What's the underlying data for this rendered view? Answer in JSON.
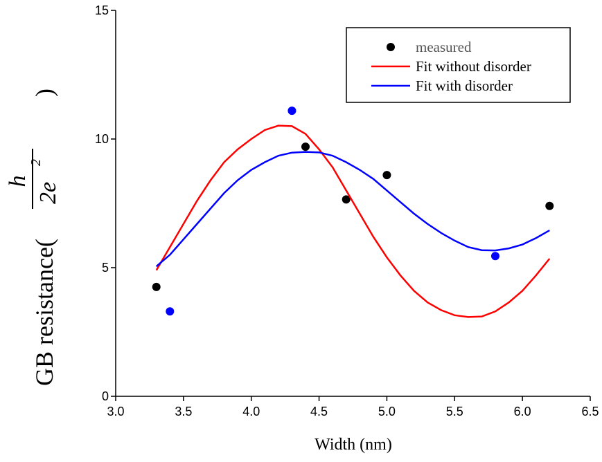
{
  "chart_data": {
    "type": "line",
    "x_label": "Width (nm)",
    "y_label": {
      "text": "GB resistance(",
      "numerator": "h",
      "denominator": "2e",
      "superscript": "2",
      "close": ")"
    },
    "xlim": [
      3.0,
      6.5
    ],
    "xticks": [
      {
        "value": 3.0,
        "label": "3.0"
      },
      {
        "value": 3.5,
        "label": "3.5"
      },
      {
        "value": 4.0,
        "label": "4.0"
      },
      {
        "value": 4.5,
        "label": "4.5"
      },
      {
        "value": 5.0,
        "label": "5.0"
      },
      {
        "value": 5.5,
        "label": "5.5"
      },
      {
        "value": 6.0,
        "label": "6.0"
      },
      {
        "value": 6.5,
        "label": "6.5"
      }
    ],
    "ylim": [
      0,
      15
    ],
    "yticks": [
      0,
      5,
      10,
      15
    ],
    "legend": "top-right",
    "series": [
      {
        "name": "measured",
        "type": "scatter",
        "color": "#000000",
        "x": [
          3.3,
          4.4,
          4.7,
          5.0,
          6.2
        ],
        "values": [
          4.25,
          9.7,
          7.65,
          8.6,
          7.4
        ]
      },
      {
        "type": "scatter",
        "color": "#0000ff",
        "x": [
          3.4,
          4.3,
          5.8
        ],
        "values": [
          3.3,
          11.1,
          5.45
        ]
      },
      {
        "name": "Fit without disorder",
        "type": "line",
        "color": "#ff0000",
        "x": [
          3.3,
          3.4,
          3.5,
          3.6,
          3.7,
          3.8,
          3.9,
          4.0,
          4.1,
          4.2,
          4.3,
          4.4,
          4.5,
          4.6,
          4.7,
          4.8,
          4.9,
          5.0,
          5.1,
          5.2,
          5.3,
          5.4,
          5.5,
          5.6,
          5.7,
          5.8,
          5.9,
          6.0,
          6.1,
          6.2
        ],
        "values": [
          4.9,
          5.8,
          6.7,
          7.6,
          8.4,
          9.1,
          9.6,
          10.0,
          10.35,
          10.52,
          10.5,
          10.2,
          9.6,
          8.9,
          8.0,
          7.1,
          6.2,
          5.4,
          4.7,
          4.1,
          3.65,
          3.35,
          3.15,
          3.08,
          3.1,
          3.3,
          3.65,
          4.1,
          4.7,
          5.35
        ]
      },
      {
        "name": "Fit with disorder",
        "type": "line",
        "color": "#0000ff",
        "x": [
          3.3,
          3.4,
          3.5,
          3.6,
          3.7,
          3.8,
          3.9,
          4.0,
          4.1,
          4.2,
          4.3,
          4.4,
          4.5,
          4.6,
          4.7,
          4.8,
          4.9,
          5.0,
          5.1,
          5.2,
          5.3,
          5.4,
          5.5,
          5.6,
          5.7,
          5.8,
          5.9,
          6.0,
          6.1,
          6.2
        ],
        "values": [
          5.05,
          5.5,
          6.1,
          6.7,
          7.3,
          7.9,
          8.4,
          8.8,
          9.1,
          9.35,
          9.47,
          9.5,
          9.48,
          9.35,
          9.1,
          8.8,
          8.45,
          8.0,
          7.55,
          7.1,
          6.7,
          6.35,
          6.05,
          5.8,
          5.68,
          5.67,
          5.75,
          5.9,
          6.15,
          6.45
        ]
      }
    ]
  }
}
